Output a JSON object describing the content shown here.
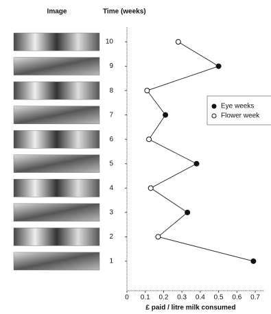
{
  "chart_data": {
    "type": "line",
    "image_header": "Image",
    "ylabel": "Time (weeks)",
    "xlabel": "£ paid / litre milk consumed",
    "y": [
      1,
      2,
      3,
      4,
      5,
      6,
      7,
      8,
      9,
      10
    ],
    "series": [
      {
        "name": "Eye weeks",
        "color": "#111111",
        "filled": true,
        "values": [
          0.69,
          null,
          0.33,
          null,
          0.38,
          null,
          0.21,
          null,
          0.5,
          null
        ]
      },
      {
        "name": "Flower week",
        "color": "#111111",
        "filled": false,
        "values": [
          null,
          0.17,
          null,
          0.13,
          null,
          0.12,
          null,
          0.11,
          null,
          0.28
        ]
      }
    ],
    "line_color": "#333333",
    "xlim": [
      0,
      0.75
    ],
    "xticks": [
      0,
      0.1,
      0.2,
      0.3,
      0.4,
      0.5,
      0.6,
      0.7
    ],
    "ylim": [
      0,
      11
    ],
    "yticks": [
      1,
      2,
      3,
      4,
      5,
      6,
      7,
      8,
      9,
      10
    ],
    "legend": "right"
  }
}
